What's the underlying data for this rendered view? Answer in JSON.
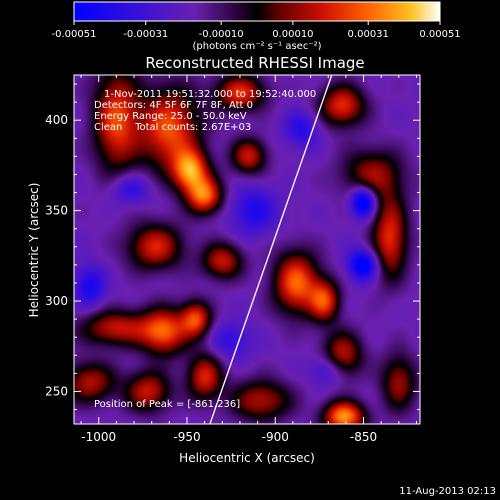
{
  "chart_data": {
    "type": "heatmap",
    "title": "Reconstructed RHESSI Image",
    "xlabel": "Heliocentric X (arcsec)",
    "ylabel": "Heliocentric Y (arcsec)",
    "xlim": [
      -1014,
      -818
    ],
    "ylim": [
      232,
      425
    ],
    "x_ticks": [
      -1000,
      -950,
      -900,
      -850
    ],
    "y_ticks": [
      250,
      300,
      350,
      400
    ],
    "colorbar": {
      "range": [
        -0.00051,
        0.00051
      ],
      "ticks": [
        "-0.00051",
        "-0.00031",
        "-0.00010",
        "0.00010",
        "0.00031",
        "0.00051"
      ],
      "unit_label": "(photons cm⁻² s⁻¹ asec⁻²)"
    },
    "annotations": [
      "1-Nov-2011 19:51:32.000 to 19:52:40.000",
      "Detectors: 4F 5F 6F 7F 8F, Att 0",
      "Energy Range: 25.0 - 50.0 keV",
      "Clean    Total counts: 2.67E+03"
    ],
    "peak_label": "Position of Peak = [-861,236]",
    "peak": [
      -861,
      236
    ],
    "limb_line": [
      [
        -937,
        232
      ],
      [
        -868,
        425
      ]
    ],
    "blobs": [
      {
        "x": -990,
        "y": 400,
        "sx": 9,
        "sy": 20,
        "a": 0.85
      },
      {
        "x": -960,
        "y": 395,
        "sx": 12,
        "sy": 16,
        "a": 0.9
      },
      {
        "x": -948,
        "y": 372,
        "sx": 7,
        "sy": 8,
        "a": 1.0
      },
      {
        "x": -940,
        "y": 358,
        "sx": 7,
        "sy": 7,
        "a": 0.95
      },
      {
        "x": -920,
        "y": 415,
        "sx": 10,
        "sy": 7,
        "a": 0.8
      },
      {
        "x": -915,
        "y": 380,
        "sx": 7,
        "sy": 7,
        "a": 0.7
      },
      {
        "x": -862,
        "y": 408,
        "sx": 9,
        "sy": 8,
        "a": 0.8
      },
      {
        "x": -845,
        "y": 370,
        "sx": 12,
        "sy": 10,
        "a": 0.6
      },
      {
        "x": -835,
        "y": 335,
        "sx": 7,
        "sy": 16,
        "a": 0.8
      },
      {
        "x": -968,
        "y": 330,
        "sx": 11,
        "sy": 9,
        "a": 0.75
      },
      {
        "x": -930,
        "y": 322,
        "sx": 8,
        "sy": 7,
        "a": 0.7
      },
      {
        "x": -888,
        "y": 310,
        "sx": 9,
        "sy": 12,
        "a": 0.95
      },
      {
        "x": -872,
        "y": 300,
        "sx": 6,
        "sy": 8,
        "a": 0.8
      },
      {
        "x": -862,
        "y": 270,
        "sx": 8,
        "sy": 9,
        "a": 0.7
      },
      {
        "x": -990,
        "y": 285,
        "sx": 14,
        "sy": 7,
        "a": 0.7
      },
      {
        "x": -963,
        "y": 283,
        "sx": 9,
        "sy": 9,
        "a": 0.9
      },
      {
        "x": -945,
        "y": 290,
        "sx": 6,
        "sy": 7,
        "a": 0.85
      },
      {
        "x": -1005,
        "y": 255,
        "sx": 10,
        "sy": 8,
        "a": 0.65
      },
      {
        "x": -972,
        "y": 250,
        "sx": 9,
        "sy": 8,
        "a": 0.7
      },
      {
        "x": -940,
        "y": 258,
        "sx": 7,
        "sy": 9,
        "a": 0.75
      },
      {
        "x": -908,
        "y": 245,
        "sx": 12,
        "sy": 8,
        "a": 0.65
      },
      {
        "x": -861,
        "y": 236,
        "sx": 8,
        "sy": 6,
        "a": 1.1
      },
      {
        "x": -830,
        "y": 255,
        "sx": 7,
        "sy": 11,
        "a": 0.6
      },
      {
        "x": -850,
        "y": 320,
        "sx": 6,
        "sy": 6,
        "a": -0.75
      },
      {
        "x": -850,
        "y": 355,
        "sx": 5,
        "sy": 6,
        "a": -0.9
      },
      {
        "x": -912,
        "y": 350,
        "sx": 9,
        "sy": 9,
        "a": -0.45
      },
      {
        "x": -1005,
        "y": 308,
        "sx": 6,
        "sy": 8,
        "a": -0.5
      },
      {
        "x": -885,
        "y": 395,
        "sx": 7,
        "sy": 7,
        "a": -0.4
      },
      {
        "x": -982,
        "y": 362,
        "sx": 8,
        "sy": 6,
        "a": -0.4
      },
      {
        "x": -925,
        "y": 278,
        "sx": 8,
        "sy": 7,
        "a": -0.35
      },
      {
        "x": -870,
        "y": 262,
        "sx": 7,
        "sy": 6,
        "a": -0.4
      }
    ]
  },
  "footer": {
    "date": "11-Aug-2013 02:13"
  }
}
